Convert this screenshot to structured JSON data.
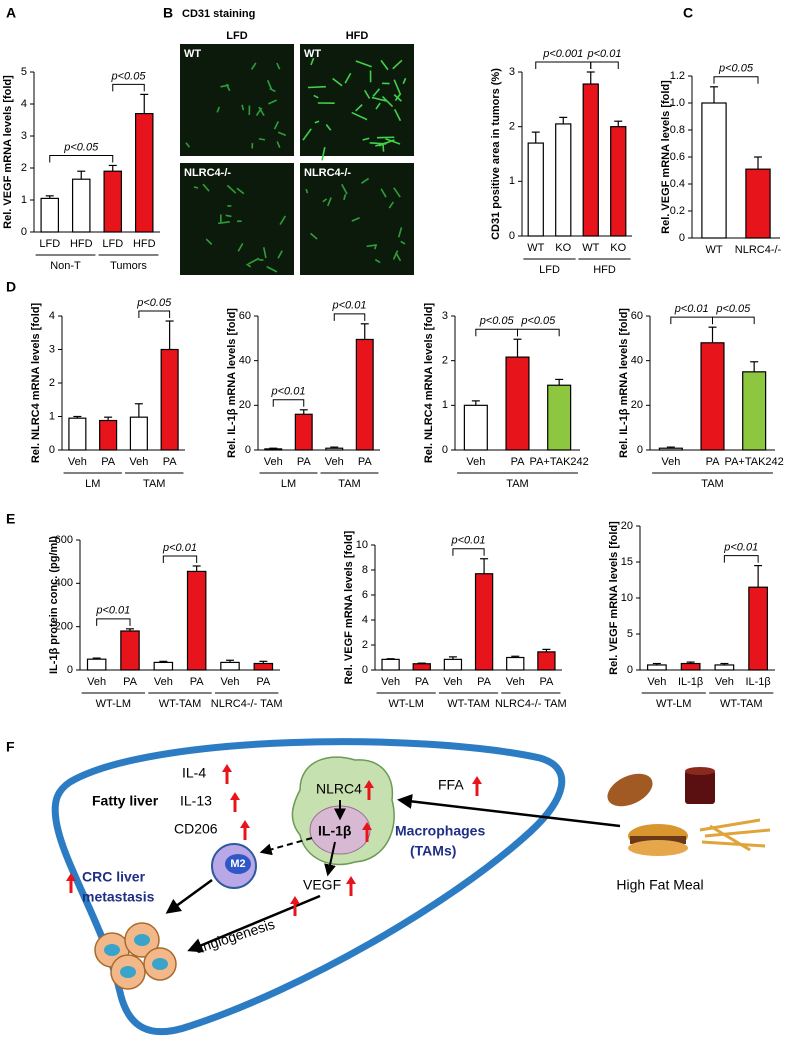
{
  "panel_labels": [
    "A",
    "B",
    "C",
    "D",
    "E",
    "F"
  ],
  "staining": {
    "title": "CD31 staining",
    "columns": [
      "LFD",
      "HFD"
    ],
    "image_labels": [
      "WT",
      "WT",
      "NLRC4-/-",
      "NLRC4-/-"
    ]
  },
  "chart_data": [
    {
      "type": "bar",
      "ylabel": "Rel. VEGF mRNA levels [fold]",
      "categories": [
        "LFD",
        "HFD",
        "LFD",
        "HFD"
      ],
      "values": [
        1.05,
        1.65,
        1.9,
        3.7
      ],
      "errors": [
        0.08,
        0.25,
        0.18,
        0.6
      ],
      "colors": [
        "#ffffff",
        "#ffffff",
        "#e8141c",
        "#e8141c"
      ],
      "ylim": [
        0,
        5
      ],
      "yticks": [
        0,
        1,
        2,
        3,
        4,
        5
      ],
      "groups": [
        {
          "label": "Non-T",
          "bars": [
            0,
            1
          ]
        },
        {
          "label": "Tumors",
          "bars": [
            2,
            3
          ]
        }
      ],
      "brackets": [
        {
          "label": "p<0.05",
          "bars": [
            0,
            2
          ]
        },
        {
          "label": "p<0.05",
          "bars": [
            2,
            3
          ]
        }
      ]
    },
    {
      "type": "bar",
      "ylabel": "CD31 positive area in tumors (%)",
      "categories": [
        "WT",
        "KO",
        "WT",
        "KO"
      ],
      "values": [
        1.7,
        2.05,
        2.78,
        2.0
      ],
      "errors": [
        0.2,
        0.12,
        0.22,
        0.1
      ],
      "colors": [
        "#ffffff",
        "#ffffff",
        "#e8141c",
        "#e8141c"
      ],
      "ylim": [
        0,
        3
      ],
      "yticks": [
        0,
        1,
        2,
        3
      ],
      "groups": [
        {
          "label": "LFD",
          "bars": [
            0,
            1
          ]
        },
        {
          "label": "HFD",
          "bars": [
            2,
            3
          ]
        }
      ],
      "brackets": [
        {
          "label": "p<0.001",
          "bars": [
            0,
            2
          ]
        },
        {
          "label": "p<0.01",
          "bars": [
            2,
            3
          ]
        }
      ]
    },
    {
      "type": "bar",
      "ylabel": "Rel. VEGF mRNA levels [fold]",
      "categories": [
        "WT",
        "NLRC4-/-"
      ],
      "values": [
        1.0,
        0.51
      ],
      "errors": [
        0.12,
        0.09
      ],
      "colors": [
        "#ffffff",
        "#e8141c"
      ],
      "ylim": [
        0,
        1.2
      ],
      "yticks": [
        0,
        0.2,
        0.4,
        0.6,
        0.8,
        {
          "value": 1,
          "label": "1.0"
        },
        1.2
      ],
      "groups": [],
      "brackets": [
        {
          "label": "p<0.05",
          "bars": [
            0,
            1
          ]
        }
      ]
    },
    {
      "type": "bar",
      "ylabel": "Rel. NLRC4 mRNA levels [fold]",
      "categories": [
        "Veh",
        "PA",
        "Veh",
        "PA"
      ],
      "values": [
        0.95,
        0.88,
        0.98,
        3.0
      ],
      "errors": [
        0.05,
        0.1,
        0.4,
        0.85
      ],
      "colors": [
        "#ffffff",
        "#e8141c",
        "#ffffff",
        "#e8141c"
      ],
      "ylim": [
        0,
        4
      ],
      "yticks": [
        0,
        1,
        2,
        3,
        4
      ],
      "groups": [
        {
          "label": "LM",
          "bars": [
            0,
            1
          ]
        },
        {
          "label": "TAM",
          "bars": [
            2,
            3
          ]
        }
      ],
      "brackets": [
        {
          "label": "p<0.05",
          "bars": [
            2,
            3
          ]
        }
      ]
    },
    {
      "type": "bar",
      "ylabel": "Rel. IL-1β mRNA levels [fold]",
      "categories": [
        "Veh",
        "PA",
        "Veh",
        "PA"
      ],
      "values": [
        0.5,
        16,
        0.8,
        49.5
      ],
      "errors": [
        0.3,
        2,
        0.5,
        7
      ],
      "colors": [
        "#ffffff",
        "#e8141c",
        "#ffffff",
        "#e8141c"
      ],
      "ylim": [
        0,
        60
      ],
      "yticks": [
        0,
        20,
        40,
        60
      ],
      "groups": [
        {
          "label": "LM",
          "bars": [
            0,
            1
          ]
        },
        {
          "label": "TAM",
          "bars": [
            2,
            3
          ]
        }
      ],
      "brackets": [
        {
          "label": "p<0.01",
          "bars": [
            0,
            1
          ]
        },
        {
          "label": "p<0.01",
          "bars": [
            2,
            3
          ]
        }
      ]
    },
    {
      "type": "bar",
      "ylabel": "Rel. NLRC4 mRNA levels [fold]",
      "categories": [
        "Veh",
        "PA",
        "PA+TAK242"
      ],
      "values": [
        1.0,
        2.08,
        1.45
      ],
      "errors": [
        0.1,
        0.4,
        0.13
      ],
      "colors": [
        "#ffffff",
        "#e8141c",
        "#8dc63f"
      ],
      "ylim": [
        0,
        3
      ],
      "yticks": [
        0,
        1,
        2,
        3
      ],
      "groups": [
        {
          "label": "TAM",
          "bars": [
            0,
            2
          ]
        }
      ],
      "brackets": [
        {
          "label": "p<0.05",
          "bars": [
            0,
            1
          ]
        },
        {
          "label": "p<0.05",
          "bars": [
            1,
            2
          ]
        }
      ]
    },
    {
      "type": "bar",
      "ylabel": "Rel. IL-1β mRNA levels [fold]",
      "categories": [
        "Veh",
        "PA",
        "PA+TAK242"
      ],
      "values": [
        0.8,
        48,
        35
      ],
      "errors": [
        0.5,
        7,
        4.5
      ],
      "colors": [
        "#ffffff",
        "#e8141c",
        "#8dc63f"
      ],
      "ylim": [
        0,
        60
      ],
      "yticks": [
        0,
        20,
        40,
        60
      ],
      "groups": [
        {
          "label": "TAM",
          "bars": [
            0,
            2
          ]
        }
      ],
      "brackets": [
        {
          "label": "p<0.01",
          "bars": [
            0,
            1
          ]
        },
        {
          "label": "p<0.05",
          "bars": [
            1,
            2
          ]
        }
      ]
    },
    {
      "type": "bar",
      "ylabel": "IL-1β protein conc. (pg/ml)",
      "categories": [
        "Veh",
        "PA",
        "Veh",
        "PA",
        "Veh",
        "PA"
      ],
      "values": [
        50,
        180,
        35,
        455,
        35,
        30
      ],
      "errors": [
        5,
        10,
        5,
        25,
        10,
        10
      ],
      "colors": [
        "#ffffff",
        "#e8141c",
        "#ffffff",
        "#e8141c",
        "#ffffff",
        "#e8141c"
      ],
      "ylim": [
        0,
        600
      ],
      "yticks": [
        0,
        200,
        400,
        600
      ],
      "groups": [
        {
          "label": "WT-LM",
          "bars": [
            0,
            1
          ]
        },
        {
          "label": "WT-TAM",
          "bars": [
            2,
            3
          ]
        },
        {
          "label": "NLRC4-/- TAM",
          "bars": [
            4,
            5
          ]
        }
      ],
      "brackets": [
        {
          "label": "p<0.01",
          "bars": [
            0,
            1
          ]
        },
        {
          "label": "p<0.01",
          "bars": [
            2,
            3
          ]
        }
      ]
    },
    {
      "type": "bar",
      "ylabel": "Rel. VEGF mRNA levels [fold]",
      "categories": [
        "Veh",
        "PA",
        "Veh",
        "PA",
        "Veh",
        "PA"
      ],
      "values": [
        0.85,
        0.5,
        0.85,
        7.7,
        1.0,
        1.45
      ],
      "errors": [
        0.05,
        0.05,
        0.2,
        1.2,
        0.1,
        0.2
      ],
      "colors": [
        "#ffffff",
        "#e8141c",
        "#ffffff",
        "#e8141c",
        "#ffffff",
        "#e8141c"
      ],
      "ylim": [
        0,
        10
      ],
      "yticks": [
        0,
        2,
        4,
        6,
        8,
        10
      ],
      "groups": [
        {
          "label": "WT-LM",
          "bars": [
            0,
            1
          ]
        },
        {
          "label": "WT-TAM",
          "bars": [
            2,
            3
          ]
        },
        {
          "label": "NLRC4-/- TAM",
          "bars": [
            4,
            5
          ]
        }
      ],
      "brackets": [
        {
          "label": "p<0.01",
          "bars": [
            2,
            3
          ]
        }
      ]
    },
    {
      "type": "bar",
      "ylabel": "Rel. VEGF mRNA levels [fold]",
      "categories": [
        "Veh",
        "IL-1β",
        "Veh",
        "IL-1β"
      ],
      "values": [
        0.7,
        0.9,
        0.7,
        11.5
      ],
      "errors": [
        0.2,
        0.2,
        0.2,
        3
      ],
      "colors": [
        "#ffffff",
        "#e8141c",
        "#ffffff",
        "#e8141c"
      ],
      "ylim": [
        0,
        20
      ],
      "yticks": [
        0,
        5,
        10,
        15,
        20
      ],
      "groups": [
        {
          "label": "WT-LM",
          "bars": [
            0,
            1
          ]
        },
        {
          "label": "WT-TAM",
          "bars": [
            2,
            3
          ]
        }
      ],
      "brackets": [
        {
          "label": "p<0.01",
          "bars": [
            2,
            3
          ]
        }
      ]
    }
  ],
  "diagram": {
    "fatty_liver": "Fatty liver",
    "cytokines": [
      "IL-4",
      "IL-13",
      "CD206"
    ],
    "nlrc4": "NLRC4",
    "il1b": "IL-1β",
    "macrophage": [
      "Macrophages",
      "(TAMs)"
    ],
    "vegf": "VEGF",
    "m2": "M2",
    "crc": [
      "CRC liver",
      "metastasis"
    ],
    "angiogenesis": "angiogenesis",
    "ffa": "FFA",
    "meal": "High Fat Meal"
  }
}
